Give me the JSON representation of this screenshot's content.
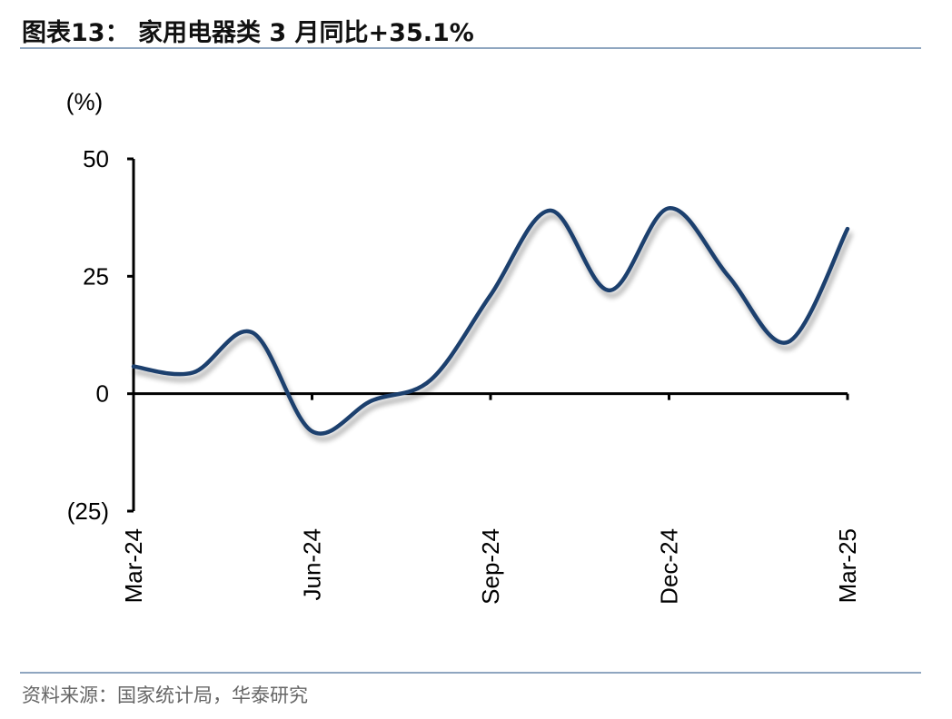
{
  "header": {
    "title": "图表13：  家用电器类 3 月同比+35.1%"
  },
  "footer": {
    "source": "资料来源：国家统计局，华泰研究"
  },
  "colors": {
    "line": "#1f3f6e",
    "axis": "#000000",
    "rule": "#8fa6c0"
  },
  "chart_data": {
    "type": "line",
    "title": "",
    "ylabel": "(%)",
    "xlabel": "",
    "ylim": [
      -25,
      50
    ],
    "yticks": [
      50,
      25,
      0,
      -25
    ],
    "ytick_labels": [
      "50",
      "25",
      "0",
      "(25)"
    ],
    "x_tick_labels": [
      "Mar-24",
      "Jun-24",
      "Sep-24",
      "Dec-24",
      "Mar-25"
    ],
    "categories": [
      "Mar-24",
      "Apr-24",
      "May-24",
      "Jun-24",
      "Jul-24",
      "Aug-24",
      "Sep-24",
      "Oct-24",
      "Nov-24",
      "Dec-24",
      "Jan-25",
      "Feb-25",
      "Mar-25"
    ],
    "series": [
      {
        "values": [
          5.8,
          4.5,
          13.0,
          -8.0,
          -1.5,
          3.0,
          21.0,
          39.0,
          22.0,
          39.5,
          25.0,
          11.0,
          35.1
        ]
      }
    ],
    "grid": false,
    "line_style": "smooth-with-shadow"
  }
}
